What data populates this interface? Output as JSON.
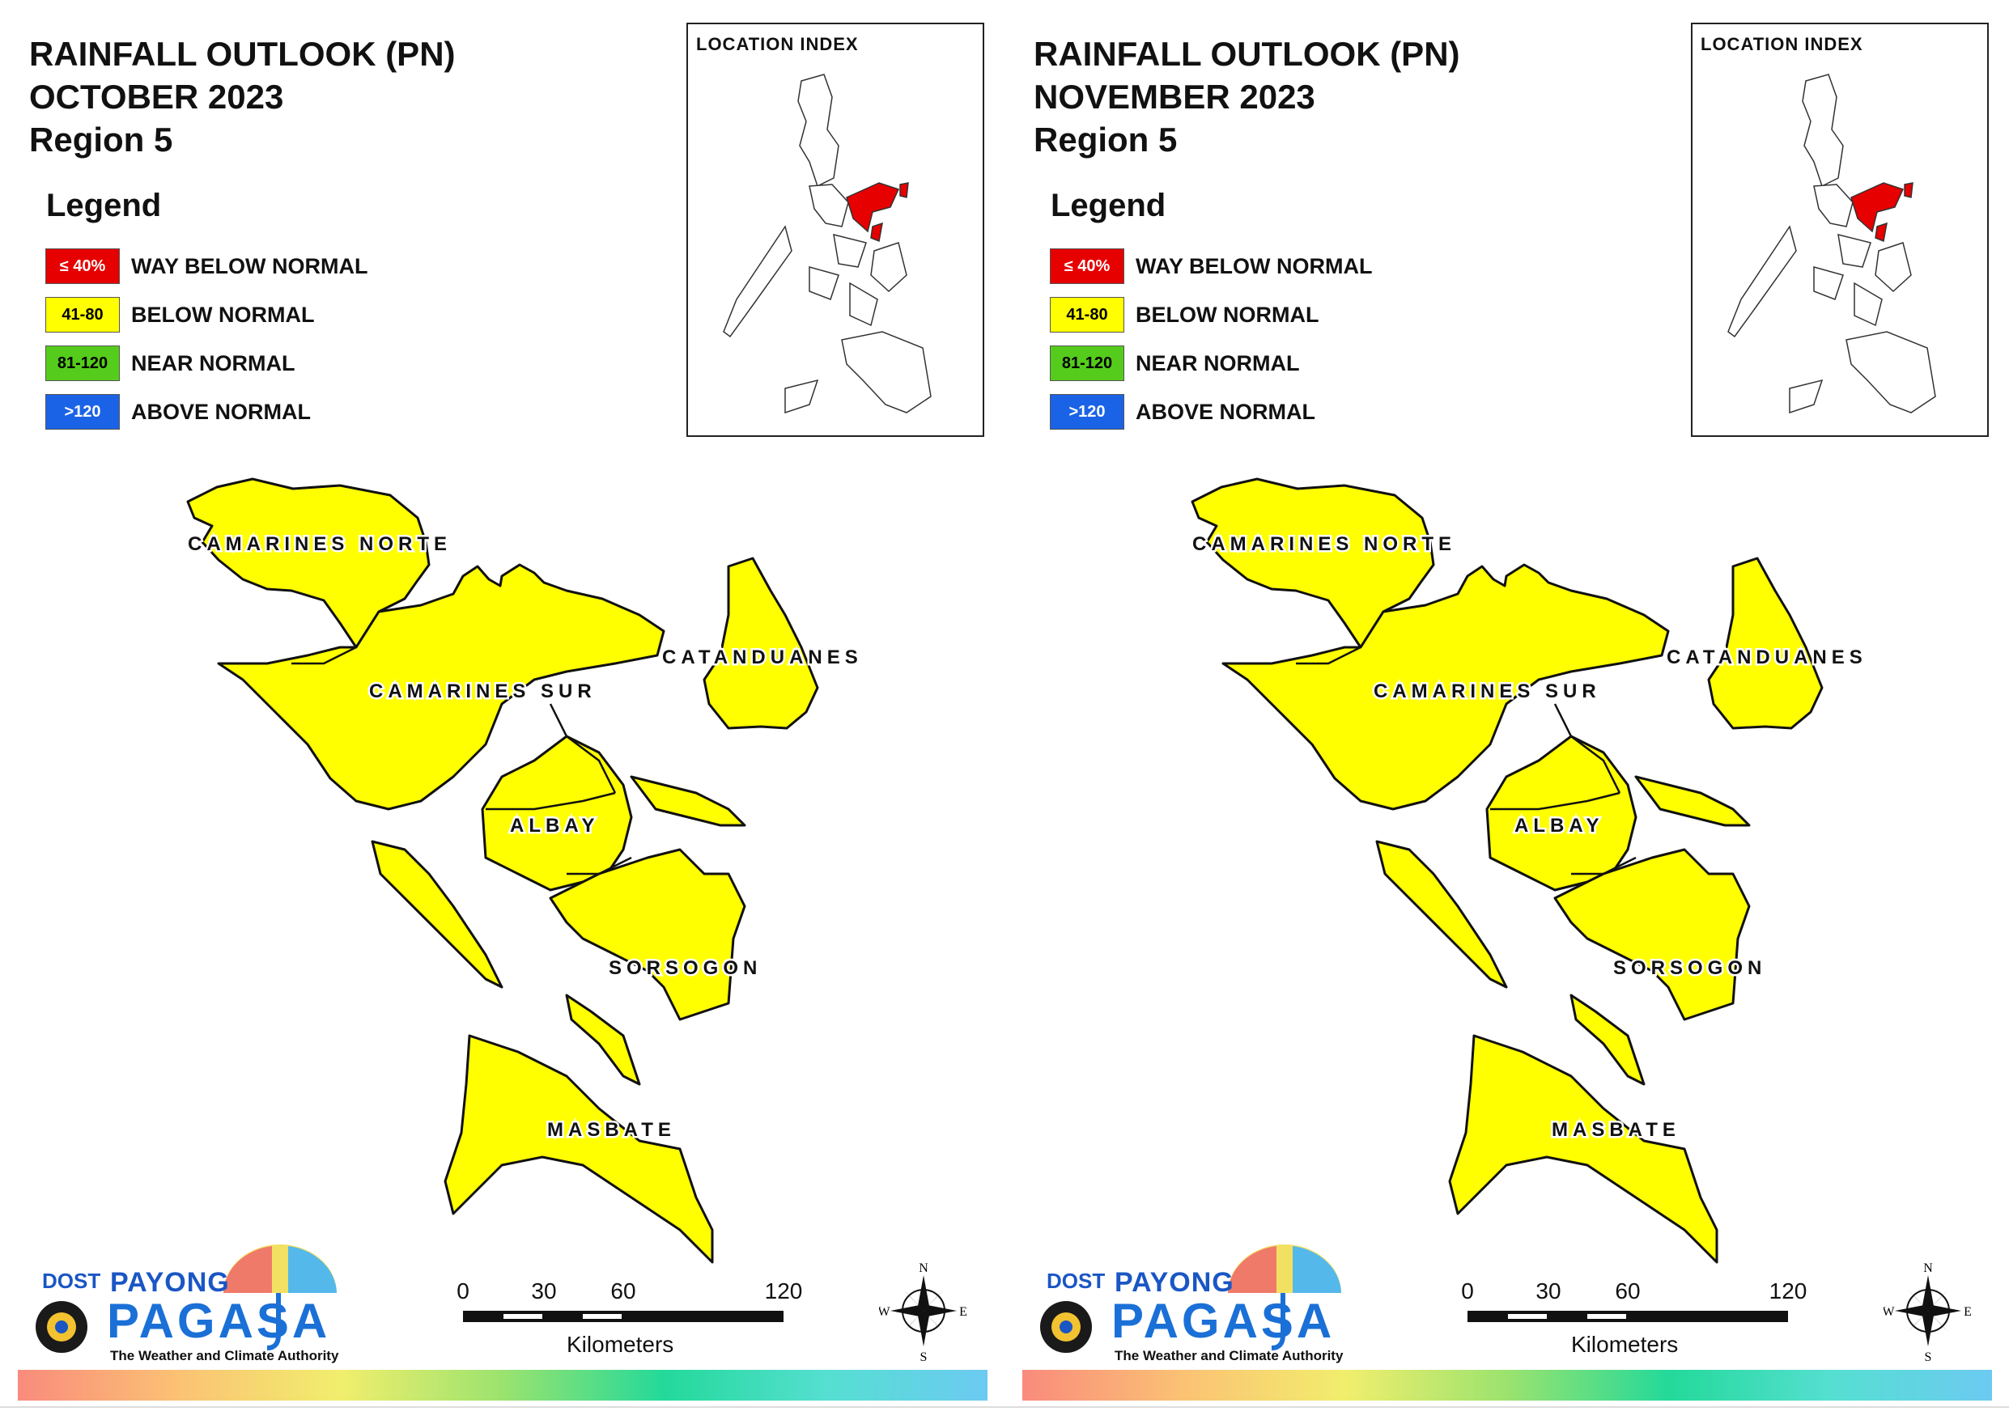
{
  "legend": {
    "title": "Legend",
    "items": [
      {
        "range": "≤ 40%",
        "label": "WAY BELOW NORMAL",
        "color": "#e60000"
      },
      {
        "range": "41-80",
        "label": "BELOW NORMAL",
        "color": "#ffff00"
      },
      {
        "range": "81-120",
        "label": "NEAR NORMAL",
        "color": "#55cc1c"
      },
      {
        "range": ">120",
        "label": "ABOVE NORMAL",
        "color": "#1a63e6"
      }
    ]
  },
  "location_index": {
    "title": "LOCATION INDEX",
    "highlight_color": "#e60000"
  },
  "provinces": [
    "CAMARINES NORTE",
    "CAMARINES SUR",
    "CATANDUANES",
    "ALBAY",
    "SORSOGON",
    "MASBATE"
  ],
  "province_fill": "#ffff00",
  "scale_bar": {
    "ticks": [
      "0",
      "30",
      "60",
      "120"
    ],
    "units": "Kilometers"
  },
  "compass": {
    "n": "N",
    "s": "S",
    "e": "E",
    "w": "W"
  },
  "logo": {
    "dost": "DOST",
    "payong": "PAYONG",
    "pagasa": "PAGASA",
    "tagline": "The Weather and Climate Authority"
  },
  "panels": [
    {
      "title_line1": "RAINFALL OUTLOOK (PN)",
      "month": "OCTOBER 2023",
      "region": "Region 5"
    },
    {
      "title_line1": "RAINFALL OUTLOOK (PN)",
      "month": "NOVEMBER 2023",
      "region": "Region 5"
    }
  ]
}
